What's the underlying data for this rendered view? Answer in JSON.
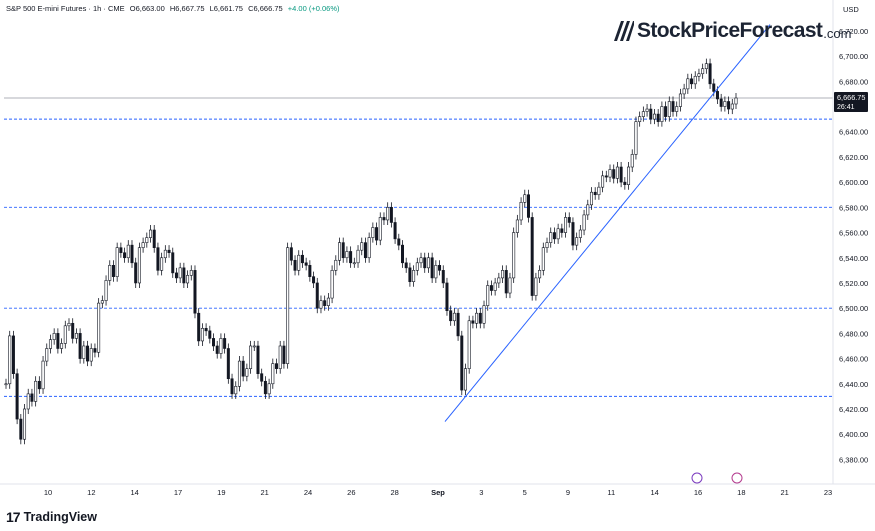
{
  "header": {
    "symbol": "S&P 500 E-mini Futures · 1h · CME",
    "open": "O6,663.00",
    "high": "H6,667.75",
    "low": "L6,661.75",
    "close": "C6,666.75",
    "change": "+4.00 (+0.06%)"
  },
  "currency": "USD",
  "logo": {
    "text": "StockPriceForecast",
    "domain": ".com"
  },
  "brand": {
    "mark": "17",
    "name": "TradingView"
  },
  "price_tag": {
    "value": "6,666.75",
    "countdown": "26:41"
  },
  "colors": {
    "line": "#2962ff",
    "hline": "#2962ff",
    "candle": "#131722",
    "grid": "#e0e3eb",
    "tag_bg": "#131722"
  },
  "icons": [
    "trendline-icon",
    "marker-icon",
    "event-icon",
    "flash-icon"
  ],
  "chart_data": {
    "type": "candlestick",
    "ylim": [
      6370,
      6735
    ],
    "y_ticks": [
      "6,380.00",
      "6,400.00",
      "6,420.00",
      "6,440.00",
      "6,460.00",
      "6,480.00",
      "6,500.00",
      "6,520.00",
      "6,540.00",
      "6,560.00",
      "6,580.00",
      "6,600.00",
      "6,620.00",
      "6,640.00",
      "6,660.00",
      "6,680.00",
      "6,700.00",
      "6,720.00"
    ],
    "x_ticks": [
      "10",
      "12",
      "14",
      "17",
      "19",
      "21",
      "24",
      "26",
      "28",
      "Sep",
      "3",
      "5",
      "9",
      "11",
      "14",
      "16",
      "18",
      "21",
      "23"
    ],
    "horizontal_levels": [
      6650,
      6580,
      6500,
      6430
    ],
    "last_price": 6666.75,
    "trendline": {
      "from": {
        "t": "Sep 2",
        "y": 6430
      },
      "to": {
        "t": "Sep 17",
        "y": 6690
      }
    },
    "series_close": [
      6440,
      6478,
      6448,
      6412,
      6396,
      6420,
      6432,
      6426,
      6442,
      6436,
      6458,
      6468,
      6475,
      6480,
      6468,
      6472,
      6486,
      6488,
      6476,
      6480,
      6460,
      6470,
      6458,
      6468,
      6465,
      6504,
      6506,
      6522,
      6534,
      6525,
      6548,
      6544,
      6540,
      6550,
      6536,
      6520,
      6548,
      6552,
      6556,
      6562,
      6548,
      6530,
      6540,
      6546,
      6544,
      6528,
      6524,
      6532,
      6520,
      6526,
      6530,
      6496,
      6474,
      6484,
      6482,
      6476,
      6470,
      6464,
      6476,
      6468,
      6444,
      6432,
      6438,
      6458,
      6446,
      6452,
      6470,
      6470,
      6448,
      6442,
      6432,
      6440,
      6456,
      6452,
      6470,
      6456,
      6548,
      6538,
      6530,
      6542,
      6536,
      6534,
      6525,
      6520,
      6500,
      6506,
      6502,
      6508,
      6530,
      6538,
      6552,
      6540,
      6545,
      6536,
      6536,
      6546,
      6552,
      6540,
      6556,
      6564,
      6554,
      6572,
      6570,
      6580,
      6568,
      6555,
      6550,
      6536,
      6532,
      6521,
      6530,
      6536,
      6540,
      6532,
      6540,
      6524,
      6534,
      6530,
      6520,
      6498,
      6490,
      6496,
      6478,
      6435,
      6452,
      6490,
      6488,
      6496,
      6488,
      6502,
      6518,
      6514,
      6520,
      6524,
      6530,
      6512,
      6524,
      6560,
      6570,
      6584,
      6590,
      6572,
      6510,
      6524,
      6530,
      6548,
      6552,
      6560,
      6555,
      6563,
      6560,
      6572,
      6568,
      6550,
      6556,
      6562,
      6574,
      6582,
      6592,
      6590,
      6596,
      6605,
      6604,
      6610,
      6603,
      6612,
      6600,
      6598,
      6612,
      6622,
      6648,
      6652,
      6656,
      6658,
      6650,
      6654,
      6648,
      6660,
      6652,
      6664,
      6656,
      6660,
      6670,
      6674,
      6682,
      6678,
      6684,
      6686,
      6690,
      6694,
      6678,
      6672,
      6666,
      6660,
      6664,
      6658,
      6662,
      6666.75
    ]
  }
}
